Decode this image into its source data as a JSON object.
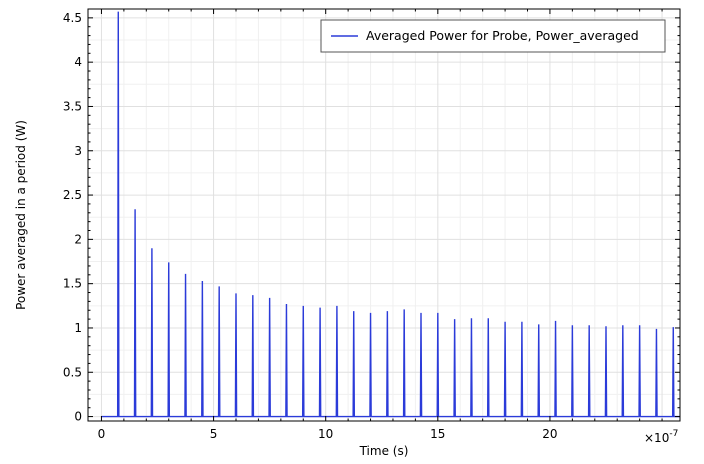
{
  "chart_data": {
    "type": "line",
    "title": "",
    "xlabel": "Time (s)",
    "ylabel": "Power averaged in a period (W)",
    "x_multiplier_label": "×10",
    "x_multiplier_exponent": "-7",
    "xlim": [
      -0.6,
      25.8
    ],
    "ylim": [
      -0.05,
      4.6
    ],
    "xticks": [
      0,
      5,
      10,
      15,
      20
    ],
    "xtick_labels": [
      "0",
      "5",
      "10",
      "15",
      "20"
    ],
    "yticks": [
      0,
      0.5,
      1,
      1.5,
      2,
      2.5,
      3,
      3.5,
      4,
      4.5
    ],
    "ytick_labels": [
      "0",
      "0.5",
      "1",
      "1.5",
      "2",
      "2.5",
      "3",
      "3.5",
      "4",
      "4.5"
    ],
    "grid": true,
    "legend_position": "top-right",
    "series": [
      {
        "name": "Averaged Power for Probe, Power_averaged",
        "color": "#2b3bd9",
        "spike_times": [
          0.75,
          1.5,
          2.25,
          3.0,
          3.75,
          4.5,
          5.25,
          6.0,
          6.75,
          7.5,
          8.25,
          9.0,
          9.75,
          10.5,
          11.25,
          12.0,
          12.75,
          13.5,
          14.25,
          15.0,
          15.75,
          16.5,
          17.25,
          18.0,
          18.75,
          19.5,
          20.25,
          21.0,
          21.75,
          22.5,
          23.25,
          24.0,
          24.75,
          25.5
        ],
        "peak_values": [
          4.57,
          2.34,
          1.9,
          1.74,
          1.61,
          1.53,
          1.47,
          1.39,
          1.37,
          1.34,
          1.27,
          1.25,
          1.23,
          1.25,
          1.19,
          1.17,
          1.19,
          1.21,
          1.17,
          1.17,
          1.1,
          1.11,
          1.11,
          1.07,
          1.07,
          1.04,
          1.08,
          1.03,
          1.03,
          1.02,
          1.03,
          1.03,
          0.99,
          1.01
        ]
      }
    ]
  }
}
